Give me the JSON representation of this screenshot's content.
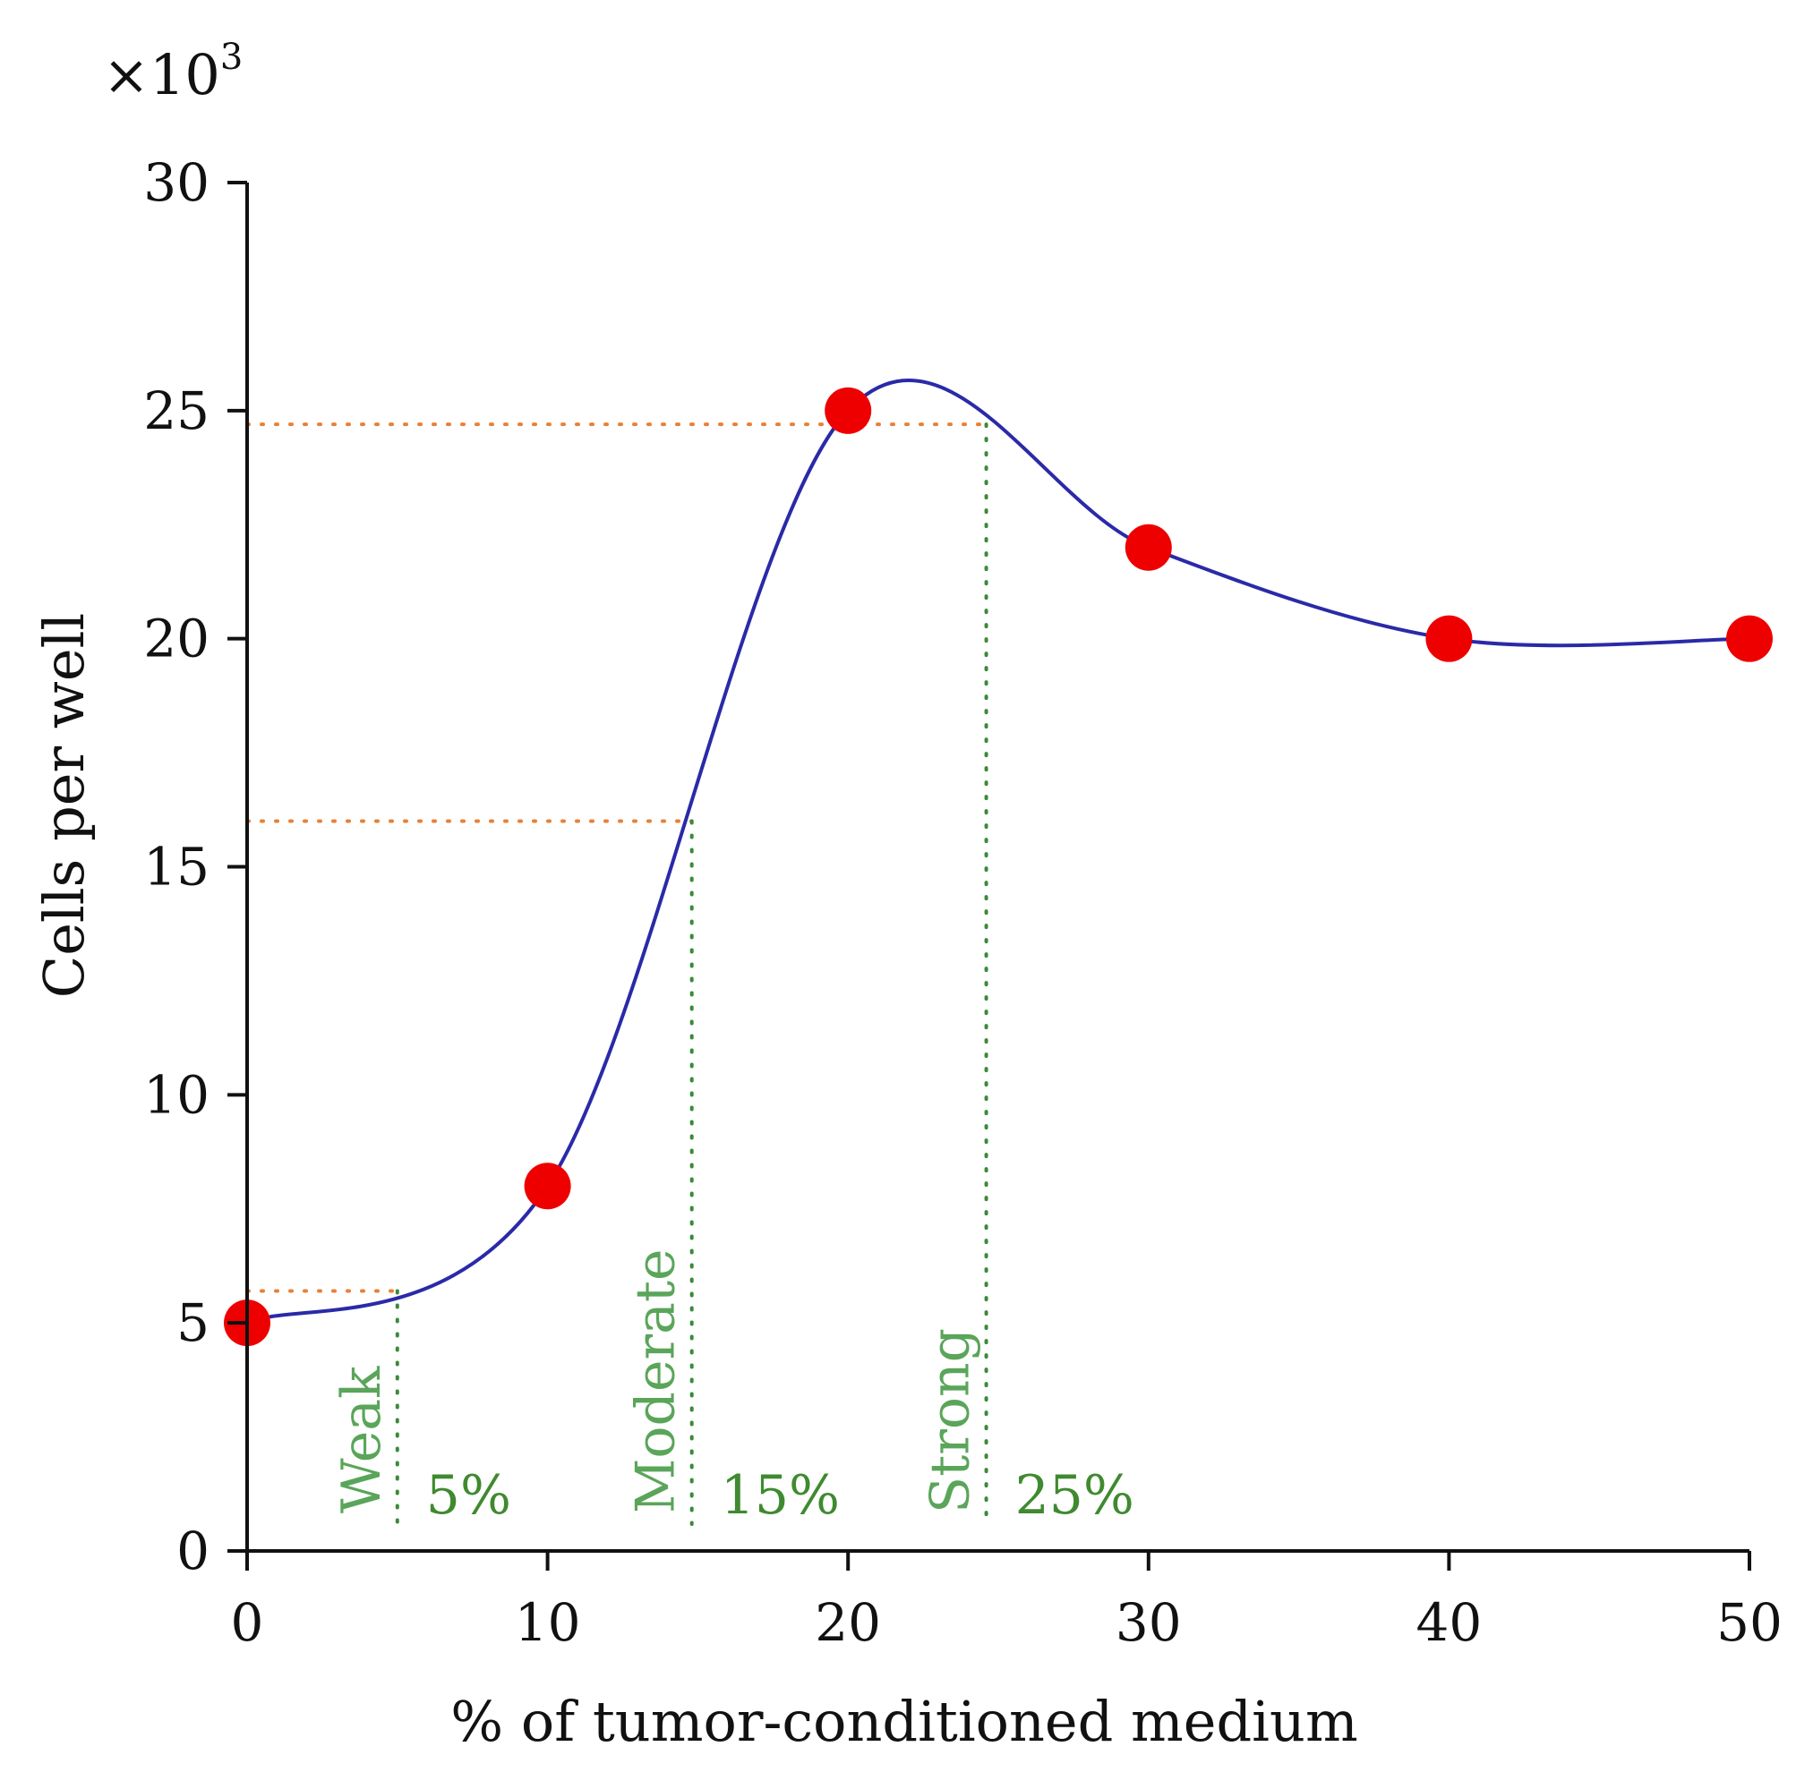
{
  "chart_data": {
    "type": "line",
    "title": "",
    "xlabel": "% of tumor-conditioned medium",
    "ylabel": "Cells per well",
    "y_multiplier_base": "×10",
    "y_multiplier_exp": "3",
    "xlim": [
      0,
      50
    ],
    "ylim": [
      0,
      30
    ],
    "xticks": [
      0,
      10,
      20,
      30,
      40,
      50
    ],
    "xtick_labels": [
      "0",
      "10",
      "20",
      "30",
      "40",
      "50"
    ],
    "yticks": [
      0,
      5,
      10,
      15,
      20,
      25,
      30
    ],
    "ytick_labels": [
      "0",
      "5",
      "10",
      "15",
      "20",
      "25",
      "30"
    ],
    "grid": false,
    "series": [
      {
        "name": "Cells per well",
        "x": [
          0,
          10,
          20,
          30,
          40,
          50
        ],
        "y": [
          5,
          8,
          25,
          22,
          20,
          20
        ],
        "marker_color": "#ee0000",
        "line_color": "#2a2aa8"
      }
    ],
    "reference_lines": [
      {
        "name": "weak",
        "x": 5,
        "y": 5.7,
        "label": "Weak",
        "percent": "5%"
      },
      {
        "name": "moderate",
        "x": 14.8,
        "y": 16,
        "label": "Moderate",
        "percent": "15%"
      },
      {
        "name": "strong",
        "x": 24.6,
        "y": 24.7,
        "label": "Strong",
        "percent": "25%"
      }
    ],
    "colors": {
      "axis": "#111111",
      "horizontal_guides": "#e8803a",
      "vertical_guides": "#3a8a3a",
      "category_labels": "#5aa55a",
      "percent_labels": "#3f8a2f"
    }
  }
}
